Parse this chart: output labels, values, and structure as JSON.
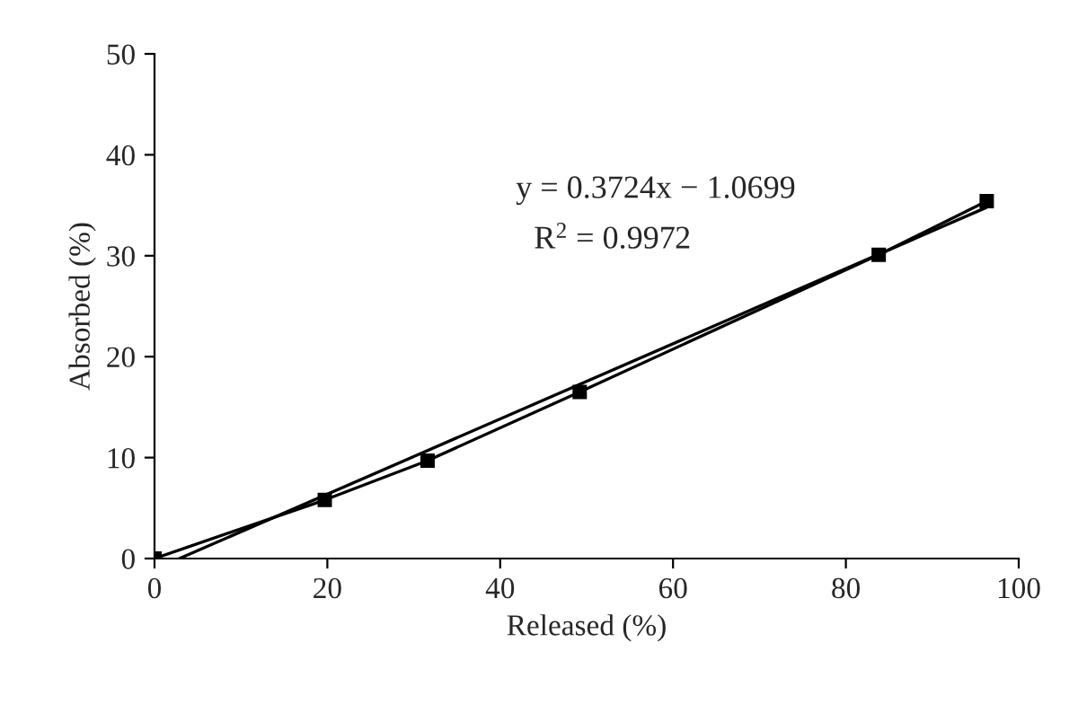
{
  "chart_data": {
    "type": "line",
    "xlabel": "Released (%)",
    "ylabel": "Absorbed (%)",
    "series": [
      {
        "color": "#000000",
        "marker": "square",
        "x": [
          0,
          19.7,
          31.6,
          49.2,
          83.8,
          96.3
        ],
        "values": [
          0,
          5.8,
          9.7,
          16.5,
          30.1,
          35.4
        ]
      },
      {
        "color": "#000000",
        "marker": "none",
        "x": [
          2.87,
          96.3
        ],
        "values": [
          0,
          34.8
        ]
      }
    ],
    "annotations": [
      "y = 0.3724x − 1.0699",
      "R$^{2}$ = 0.9972"
    ],
    "xlim": [
      0,
      100
    ],
    "xticks": [
      0,
      20,
      40,
      60,
      80,
      100
    ],
    "ylim": [
      0,
      50
    ],
    "yticks": [
      0,
      10,
      20,
      30,
      40,
      50
    ],
    "grid": false,
    "legend": false
  }
}
